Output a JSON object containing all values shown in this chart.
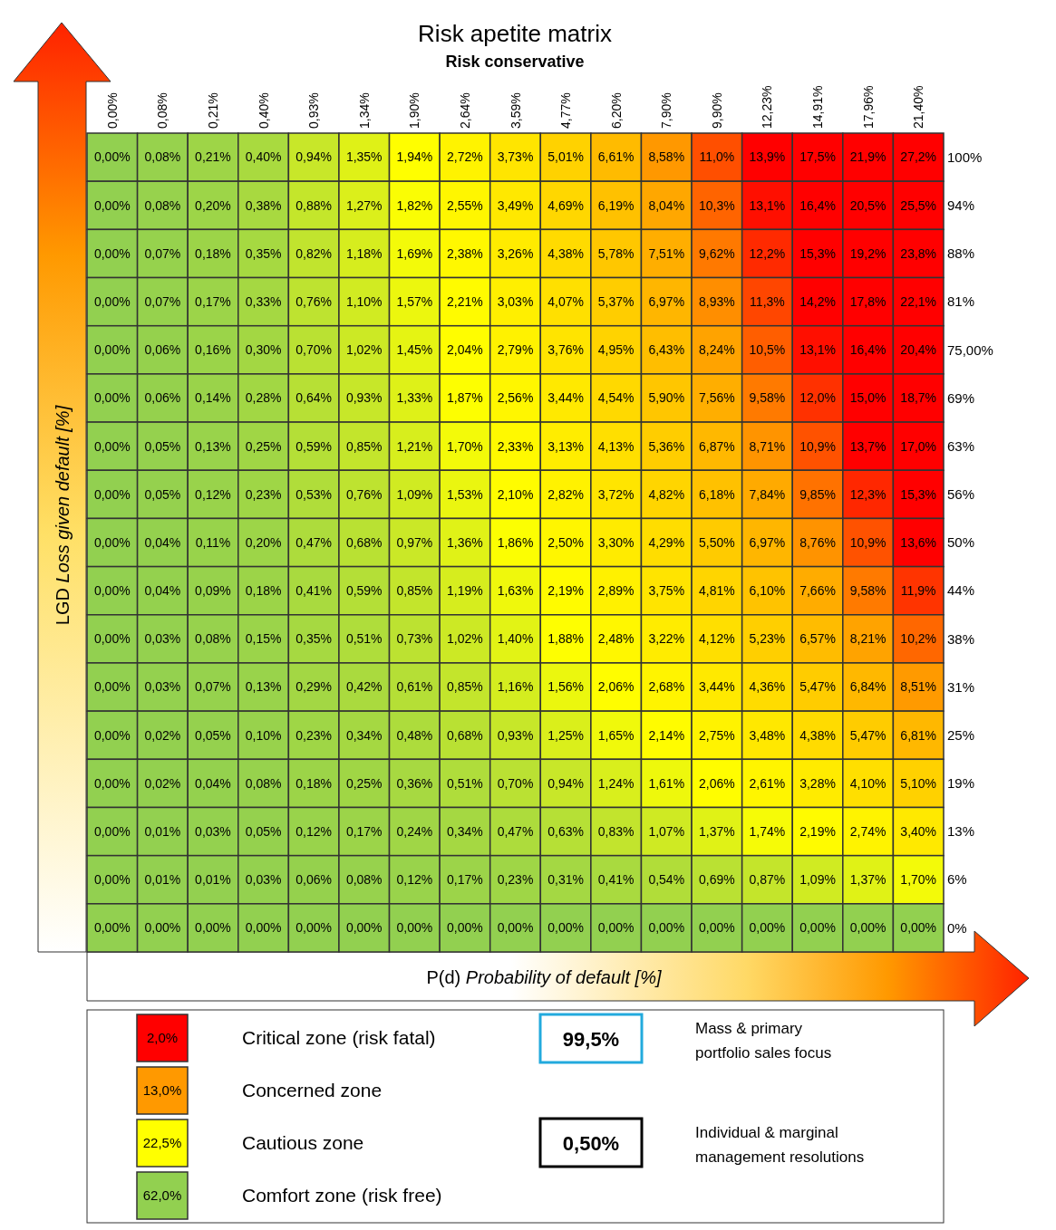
{
  "chart_data": [
    {
      "type": "heatmap",
      "title": "Risk apetite matrix",
      "subtitle": "Risk conservative",
      "xlabel": "P(d) Probability of default [%]",
      "ylabel": "LGD Loss given default [%]",
      "categories": [
        "0,00%",
        "0,08%",
        "0,21%",
        "0,40%",
        "0,93%",
        "1,34%",
        "1,90%",
        "2,64%",
        "3,59%",
        "4,77%",
        "6,20%",
        "7,90%",
        "9,90%",
        "12,23%",
        "14,91%",
        "17,96%",
        "21,40%"
      ],
      "y_categories": [
        "100%",
        "94%",
        "88%",
        "81%",
        "75,00%",
        "69%",
        "63%",
        "56%",
        "50%",
        "44%",
        "38%",
        "31%",
        "25%",
        "19%",
        "13%",
        "6%",
        "0%"
      ],
      "cells": [
        [
          0,
          0.08,
          0.21,
          0.4,
          0.94,
          1.35,
          1.94,
          2.72,
          3.73,
          5.01,
          6.61,
          8.58,
          11.0,
          13.9,
          17.5,
          21.9,
          27.2
        ],
        [
          0,
          0.08,
          0.2,
          0.38,
          0.88,
          1.27,
          1.82,
          2.55,
          3.49,
          4.69,
          6.19,
          8.04,
          10.3,
          13.1,
          16.4,
          20.5,
          25.5
        ],
        [
          0,
          0.07,
          0.18,
          0.35,
          0.82,
          1.18,
          1.69,
          2.38,
          3.26,
          4.38,
          5.78,
          7.51,
          9.62,
          12.2,
          15.3,
          19.2,
          23.8
        ],
        [
          0,
          0.07,
          0.17,
          0.33,
          0.76,
          1.1,
          1.57,
          2.21,
          3.03,
          4.07,
          5.37,
          6.97,
          8.93,
          11.3,
          14.2,
          17.8,
          22.1
        ],
        [
          0,
          0.06,
          0.16,
          0.3,
          0.7,
          1.02,
          1.45,
          2.04,
          2.79,
          3.76,
          4.95,
          6.43,
          8.24,
          10.5,
          13.1,
          16.4,
          20.4
        ],
        [
          0,
          0.06,
          0.14,
          0.28,
          0.64,
          0.93,
          1.33,
          1.87,
          2.56,
          3.44,
          4.54,
          5.9,
          7.56,
          9.58,
          12.0,
          15.0,
          18.7
        ],
        [
          0,
          0.05,
          0.13,
          0.25,
          0.59,
          0.85,
          1.21,
          1.7,
          2.33,
          3.13,
          4.13,
          5.36,
          6.87,
          8.71,
          10.9,
          13.7,
          17.0
        ],
        [
          0,
          0.05,
          0.12,
          0.23,
          0.53,
          0.76,
          1.09,
          1.53,
          2.1,
          2.82,
          3.72,
          4.82,
          6.18,
          7.84,
          9.85,
          12.3,
          15.3
        ],
        [
          0,
          0.04,
          0.11,
          0.2,
          0.47,
          0.68,
          0.97,
          1.36,
          1.86,
          2.5,
          3.3,
          4.29,
          5.5,
          6.97,
          8.76,
          10.9,
          13.6
        ],
        [
          0,
          0.04,
          0.09,
          0.18,
          0.41,
          0.59,
          0.85,
          1.19,
          1.63,
          2.19,
          2.89,
          3.75,
          4.81,
          6.1,
          7.66,
          9.58,
          11.9
        ],
        [
          0,
          0.03,
          0.08,
          0.15,
          0.35,
          0.51,
          0.73,
          1.02,
          1.4,
          1.88,
          2.48,
          3.22,
          4.12,
          5.23,
          6.57,
          8.21,
          10.2
        ],
        [
          0,
          0.03,
          0.07,
          0.13,
          0.29,
          0.42,
          0.61,
          0.85,
          1.16,
          1.56,
          2.06,
          2.68,
          3.44,
          4.36,
          5.47,
          6.84,
          8.51
        ],
        [
          0,
          0.02,
          0.05,
          0.1,
          0.23,
          0.34,
          0.48,
          0.68,
          0.93,
          1.25,
          1.65,
          2.14,
          2.75,
          3.48,
          4.38,
          5.47,
          6.81
        ],
        [
          0,
          0.02,
          0.04,
          0.08,
          0.18,
          0.25,
          0.36,
          0.51,
          0.7,
          0.94,
          1.24,
          1.61,
          2.06,
          2.61,
          3.28,
          4.1,
          5.1
        ],
        [
          0,
          0.01,
          0.03,
          0.05,
          0.12,
          0.17,
          0.24,
          0.34,
          0.47,
          0.63,
          0.83,
          1.07,
          1.37,
          1.74,
          2.19,
          2.74,
          3.4
        ],
        [
          0,
          0.01,
          0.01,
          0.03,
          0.06,
          0.08,
          0.12,
          0.17,
          0.23,
          0.31,
          0.41,
          0.54,
          0.69,
          0.87,
          1.09,
          1.37,
          1.7
        ],
        [
          0,
          0,
          0,
          0,
          0,
          0,
          0,
          0,
          0,
          0,
          0,
          0,
          0,
          0,
          0,
          0,
          0
        ]
      ],
      "cell_labels": [
        [
          "0,00%",
          "0,08%",
          "0,21%",
          "0,40%",
          "0,94%",
          "1,35%",
          "1,94%",
          "2,72%",
          "3,73%",
          "5,01%",
          "6,61%",
          "8,58%",
          "11,0%",
          "13,9%",
          "17,5%",
          "21,9%",
          "27,2%"
        ],
        [
          "0,00%",
          "0,08%",
          "0,20%",
          "0,38%",
          "0,88%",
          "1,27%",
          "1,82%",
          "2,55%",
          "3,49%",
          "4,69%",
          "6,19%",
          "8,04%",
          "10,3%",
          "13,1%",
          "16,4%",
          "20,5%",
          "25,5%"
        ],
        [
          "0,00%",
          "0,07%",
          "0,18%",
          "0,35%",
          "0,82%",
          "1,18%",
          "1,69%",
          "2,38%",
          "3,26%",
          "4,38%",
          "5,78%",
          "7,51%",
          "9,62%",
          "12,2%",
          "15,3%",
          "19,2%",
          "23,8%"
        ],
        [
          "0,00%",
          "0,07%",
          "0,17%",
          "0,33%",
          "0,76%",
          "1,10%",
          "1,57%",
          "2,21%",
          "3,03%",
          "4,07%",
          "5,37%",
          "6,97%",
          "8,93%",
          "11,3%",
          "14,2%",
          "17,8%",
          "22,1%"
        ],
        [
          "0,00%",
          "0,06%",
          "0,16%",
          "0,30%",
          "0,70%",
          "1,02%",
          "1,45%",
          "2,04%",
          "2,79%",
          "3,76%",
          "4,95%",
          "6,43%",
          "8,24%",
          "10,5%",
          "13,1%",
          "16,4%",
          "20,4%"
        ],
        [
          "0,00%",
          "0,06%",
          "0,14%",
          "0,28%",
          "0,64%",
          "0,93%",
          "1,33%",
          "1,87%",
          "2,56%",
          "3,44%",
          "4,54%",
          "5,90%",
          "7,56%",
          "9,58%",
          "12,0%",
          "15,0%",
          "18,7%"
        ],
        [
          "0,00%",
          "0,05%",
          "0,13%",
          "0,25%",
          "0,59%",
          "0,85%",
          "1,21%",
          "1,70%",
          "2,33%",
          "3,13%",
          "4,13%",
          "5,36%",
          "6,87%",
          "8,71%",
          "10,9%",
          "13,7%",
          "17,0%"
        ],
        [
          "0,00%",
          "0,05%",
          "0,12%",
          "0,23%",
          "0,53%",
          "0,76%",
          "1,09%",
          "1,53%",
          "2,10%",
          "2,82%",
          "3,72%",
          "4,82%",
          "6,18%",
          "7,84%",
          "9,85%",
          "12,3%",
          "15,3%"
        ],
        [
          "0,00%",
          "0,04%",
          "0,11%",
          "0,20%",
          "0,47%",
          "0,68%",
          "0,97%",
          "1,36%",
          "1,86%",
          "2,50%",
          "3,30%",
          "4,29%",
          "5,50%",
          "6,97%",
          "8,76%",
          "10,9%",
          "13,6%"
        ],
        [
          "0,00%",
          "0,04%",
          "0,09%",
          "0,18%",
          "0,41%",
          "0,59%",
          "0,85%",
          "1,19%",
          "1,63%",
          "2,19%",
          "2,89%",
          "3,75%",
          "4,81%",
          "6,10%",
          "7,66%",
          "9,58%",
          "11,9%"
        ],
        [
          "0,00%",
          "0,03%",
          "0,08%",
          "0,15%",
          "0,35%",
          "0,51%",
          "0,73%",
          "1,02%",
          "1,40%",
          "1,88%",
          "2,48%",
          "3,22%",
          "4,12%",
          "5,23%",
          "6,57%",
          "8,21%",
          "10,2%"
        ],
        [
          "0,00%",
          "0,03%",
          "0,07%",
          "0,13%",
          "0,29%",
          "0,42%",
          "0,61%",
          "0,85%",
          "1,16%",
          "1,56%",
          "2,06%",
          "2,68%",
          "3,44%",
          "4,36%",
          "5,47%",
          "6,84%",
          "8,51%"
        ],
        [
          "0,00%",
          "0,02%",
          "0,05%",
          "0,10%",
          "0,23%",
          "0,34%",
          "0,48%",
          "0,68%",
          "0,93%",
          "1,25%",
          "1,65%",
          "2,14%",
          "2,75%",
          "3,48%",
          "4,38%",
          "5,47%",
          "6,81%"
        ],
        [
          "0,00%",
          "0,02%",
          "0,04%",
          "0,08%",
          "0,18%",
          "0,25%",
          "0,36%",
          "0,51%",
          "0,70%",
          "0,94%",
          "1,24%",
          "1,61%",
          "2,06%",
          "2,61%",
          "3,28%",
          "4,10%",
          "5,10%"
        ],
        [
          "0,00%",
          "0,01%",
          "0,03%",
          "0,05%",
          "0,12%",
          "0,17%",
          "0,24%",
          "0,34%",
          "0,47%",
          "0,63%",
          "0,83%",
          "1,07%",
          "1,37%",
          "1,74%",
          "2,19%",
          "2,74%",
          "3,40%"
        ],
        [
          "0,00%",
          "0,01%",
          "0,01%",
          "0,03%",
          "0,06%",
          "0,08%",
          "0,12%",
          "0,17%",
          "0,23%",
          "0,31%",
          "0,41%",
          "0,54%",
          "0,69%",
          "0,87%",
          "1,09%",
          "1,37%",
          "1,70%"
        ],
        [
          "0,00%",
          "0,00%",
          "0,00%",
          "0,00%",
          "0,00%",
          "0,00%",
          "0,00%",
          "0,00%",
          "0,00%",
          "0,00%",
          "0,00%",
          "0,00%",
          "0,00%",
          "0,00%",
          "0,00%",
          "0,00%",
          "0,00%"
        ]
      ]
    },
    {
      "type": "other",
      "categories": [
        "Critical zone (risk fatal)",
        "Concerned zone",
        "Cautious zone",
        "Comfort zone (risk free)"
      ],
      "value_labels": [
        "2,0%",
        "13,0%",
        "22,5%",
        "62,0%"
      ],
      "colors": [
        "#ff0000",
        "#ff9900",
        "#ffff00",
        "#92d050"
      ],
      "annotations": [
        "99,5%",
        "Mass & primary portfolio sales focus",
        "0,50%",
        "Individual & marginal management resolutions"
      ]
    }
  ]
}
